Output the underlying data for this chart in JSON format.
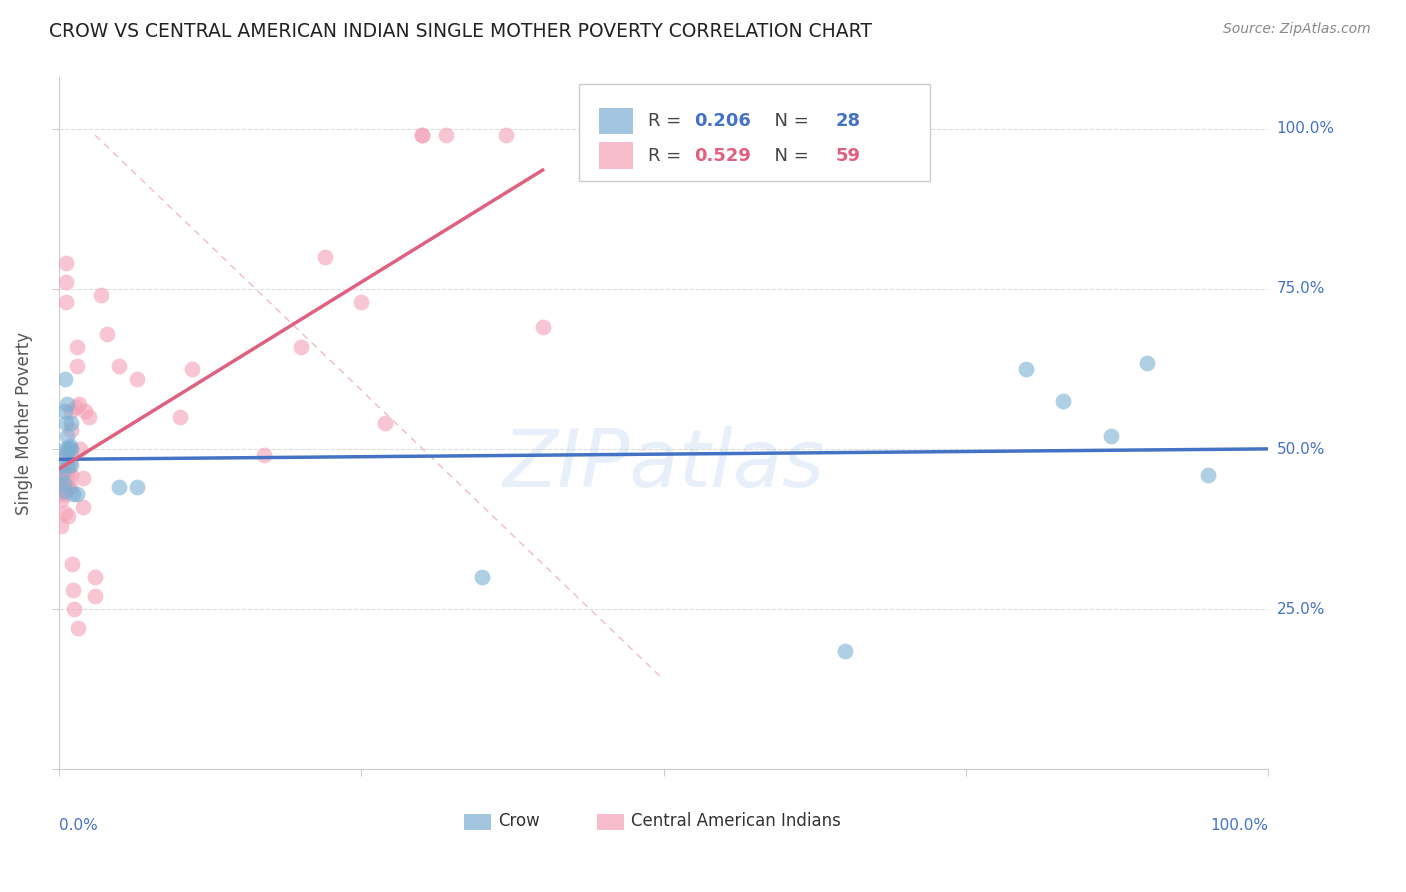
{
  "title": "CROW VS CENTRAL AMERICAN INDIAN SINGLE MOTHER POVERTY CORRELATION CHART",
  "source": "Source: ZipAtlas.com",
  "ylabel": "Single Mother Poverty",
  "watermark": "ZIPatlas",
  "crow_color": "#7bafd4",
  "cai_color": "#f4a0b5",
  "crow_line_color": "#4472c4",
  "cai_line_color": "#e06080",
  "crow_R": 0.206,
  "crow_N": 28,
  "cai_R": 0.529,
  "cai_N": 59,
  "yticks": [
    0.0,
    0.25,
    0.5,
    0.75,
    1.0
  ],
  "ytick_labels": [
    "",
    "25.0%",
    "50.0%",
    "75.0%",
    "100.0%"
  ],
  "crow_x": [
    0.003,
    0.003,
    0.004,
    0.004,
    0.005,
    0.005,
    0.005,
    0.006,
    0.006,
    0.007,
    0.007,
    0.008,
    0.008,
    0.009,
    0.01,
    0.01,
    0.01,
    0.012,
    0.015,
    0.05,
    0.065,
    0.35,
    0.65,
    0.8,
    0.83,
    0.87,
    0.9,
    0.95
  ],
  "crow_y": [
    0.475,
    0.46,
    0.445,
    0.435,
    0.61,
    0.56,
    0.5,
    0.54,
    0.49,
    0.57,
    0.52,
    0.5,
    0.475,
    0.505,
    0.54,
    0.5,
    0.475,
    0.43,
    0.43,
    0.44,
    0.44,
    0.3,
    0.185,
    0.625,
    0.575,
    0.52,
    0.635,
    0.46
  ],
  "cai_x": [
    0.001,
    0.002,
    0.002,
    0.002,
    0.003,
    0.003,
    0.004,
    0.004,
    0.005,
    0.005,
    0.005,
    0.005,
    0.006,
    0.006,
    0.006,
    0.006,
    0.007,
    0.007,
    0.007,
    0.008,
    0.008,
    0.008,
    0.009,
    0.009,
    0.01,
    0.01,
    0.01,
    0.01,
    0.011,
    0.012,
    0.013,
    0.014,
    0.015,
    0.015,
    0.016,
    0.017,
    0.018,
    0.02,
    0.02,
    0.022,
    0.025,
    0.03,
    0.03,
    0.035,
    0.04,
    0.05,
    0.065,
    0.1,
    0.11,
    0.17,
    0.2,
    0.22,
    0.25,
    0.27,
    0.3,
    0.3,
    0.32,
    0.37,
    0.4
  ],
  "cai_y": [
    0.43,
    0.45,
    0.42,
    0.38,
    0.455,
    0.44,
    0.455,
    0.44,
    0.47,
    0.45,
    0.43,
    0.4,
    0.79,
    0.76,
    0.73,
    0.495,
    0.49,
    0.46,
    0.44,
    0.465,
    0.44,
    0.395,
    0.48,
    0.44,
    0.56,
    0.53,
    0.5,
    0.46,
    0.32,
    0.28,
    0.25,
    0.565,
    0.66,
    0.63,
    0.22,
    0.57,
    0.5,
    0.455,
    0.41,
    0.56,
    0.55,
    0.3,
    0.27,
    0.74,
    0.68,
    0.63,
    0.61,
    0.55,
    0.625,
    0.49,
    0.66,
    0.8,
    0.73,
    0.54,
    0.99,
    0.99,
    0.99,
    0.99,
    0.69
  ],
  "background_color": "#ffffff",
  "grid_color": "#dddddd",
  "xlim": [
    0.0,
    1.0
  ],
  "ylim": [
    0.0,
    1.08
  ]
}
